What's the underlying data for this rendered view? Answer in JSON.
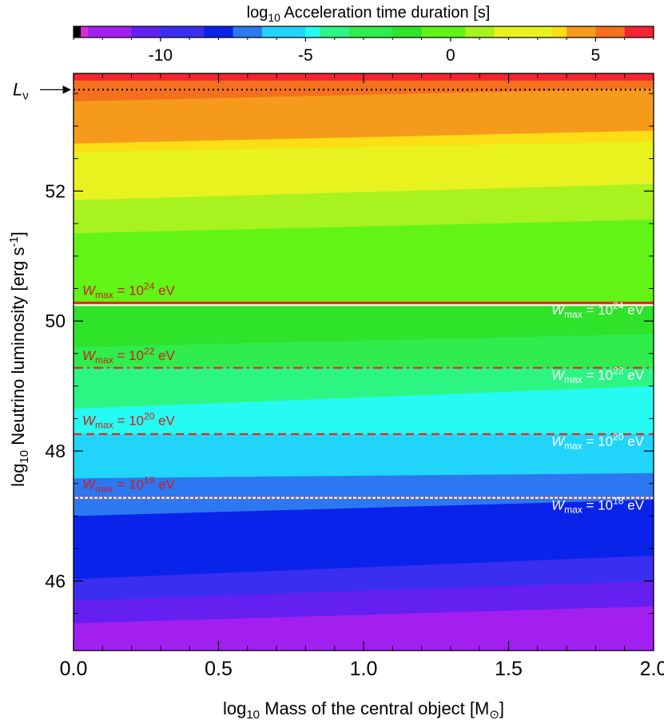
{
  "chart_data": {
    "type": "heatmap",
    "colorbar": {
      "title_prefix": "log",
      "title_sub": "10",
      "title_rest": " Acceleration time duration [s]",
      "range": [
        -13,
        7
      ],
      "ticks": [
        -10,
        -5,
        0,
        5
      ],
      "tick_labels": [
        "-10",
        "-5",
        "0",
        "5"
      ],
      "levels": [
        {
          "from": -13.0,
          "to": -12.75,
          "color": "#000000"
        },
        {
          "from": -12.75,
          "to": -12.5,
          "color": "#d82bd8"
        },
        {
          "from": -12.5,
          "to": -11.0,
          "color": "#a31ff0"
        },
        {
          "from": -11.0,
          "to": -10.0,
          "color": "#6320f0"
        },
        {
          "from": -10.0,
          "to": -8.5,
          "color": "#3a2ff0"
        },
        {
          "from": -8.5,
          "to": -7.5,
          "color": "#0a23ea"
        },
        {
          "from": -7.5,
          "to": -6.5,
          "color": "#2b78f0"
        },
        {
          "from": -6.5,
          "to": -5.0,
          "color": "#21d5fa"
        },
        {
          "from": -5.0,
          "to": -4.5,
          "color": "#25fbf2"
        },
        {
          "from": -4.5,
          "to": -3.5,
          "color": "#2cf584"
        },
        {
          "from": -3.5,
          "to": -2.0,
          "color": "#2fed4c"
        },
        {
          "from": -2.0,
          "to": -1.0,
          "color": "#2fe22a"
        },
        {
          "from": -1.0,
          "to": 0.5,
          "color": "#61f416"
        },
        {
          "from": 0.5,
          "to": 1.5,
          "color": "#a7f21f"
        },
        {
          "from": 1.5,
          "to": 3.5,
          "color": "#e8f21f"
        },
        {
          "from": 3.5,
          "to": 4.0,
          "color": "#fbde13"
        },
        {
          "from": 4.0,
          "to": 5.0,
          "color": "#f69a1c"
        },
        {
          "from": 5.0,
          "to": 6.0,
          "color": "#f5701c"
        },
        {
          "from": 6.0,
          "to": 7.0,
          "color": "#f52431"
        }
      ]
    },
    "x_axis": {
      "label_prefix": "log",
      "label_sub": "10",
      "label_rest": " Mass of the central object [M",
      "label_symbol": "⊙",
      "label_end": "]",
      "range": [
        0.0,
        2.0
      ],
      "ticks": [
        0.0,
        0.5,
        1.0,
        1.5,
        2.0
      ],
      "tick_labels": [
        "0.0",
        "0.5",
        "1.0",
        "1.5",
        "2.0"
      ]
    },
    "y_axis": {
      "label_prefix": "log",
      "label_sub": "10",
      "label_rest": " Neutrino luminosity [erg s",
      "label_sup": "-1",
      "label_end": "]",
      "range": [
        44.93,
        53.81
      ],
      "ticks": [
        46,
        48,
        50,
        52
      ],
      "tick_labels": [
        "46",
        "48",
        "50",
        "52"
      ]
    },
    "bands": [
      {
        "color": "#f52431",
        "y_left_top": 53.81,
        "y_right_top": 53.81
      },
      {
        "color": "#f5701c",
        "y_left_top": 53.7,
        "y_right_top": 53.7
      },
      {
        "color": "#f69a1c",
        "y_left_top": 53.38,
        "y_right_top": 53.58
      },
      {
        "color": "#fbde13",
        "y_left_top": 52.73,
        "y_right_top": 52.93
      },
      {
        "color": "#e8f21f",
        "y_left_top": 52.6,
        "y_right_top": 52.76
      },
      {
        "color": "#a7f21f",
        "y_left_top": 51.86,
        "y_right_top": 52.11
      },
      {
        "color": "#61f416",
        "y_left_top": 51.35,
        "y_right_top": 51.56
      },
      {
        "color": "#2fe22a",
        "y_left_top": 50.25,
        "y_right_top": 50.25
      },
      {
        "color": "#2fed4c",
        "y_left_top": 49.6,
        "y_right_top": 49.8
      },
      {
        "color": "#2cf584",
        "y_left_top": 49.28,
        "y_right_top": 49.28
      },
      {
        "color": "#25fbf2",
        "y_left_top": 48.65,
        "y_right_top": 49.0
      },
      {
        "color": "#21d5fa",
        "y_left_top": 48.26,
        "y_right_top": 48.26
      },
      {
        "color": "#2b78f0",
        "y_left_top": 47.58,
        "y_right_top": 47.66
      },
      {
        "color": "#0a23ea",
        "y_left_top": 47.0,
        "y_right_top": 47.25
      },
      {
        "color": "#3a2ff0",
        "y_left_top": 46.03,
        "y_right_top": 46.39
      },
      {
        "color": "#6320f0",
        "y_left_top": 45.7,
        "y_right_top": 46.0
      },
      {
        "color": "#a31ff0",
        "y_left_top": 45.35,
        "y_right_top": 45.61
      }
    ],
    "lines": [
      {
        "name": "L_nu",
        "y": 53.56,
        "style": "dotted",
        "color": "#000000"
      },
      {
        "name": "W1e24",
        "y": 50.28,
        "style": "solid",
        "color": "#e8261f"
      },
      {
        "name": "W1e22",
        "y": 49.28,
        "style": "dashdot",
        "color": "#e8261f"
      },
      {
        "name": "W1e20",
        "y": 48.26,
        "style": "dashed",
        "color": "#e8261f"
      },
      {
        "name": "W1e18",
        "y": 47.28,
        "style": "dotted",
        "color": "#e8261f"
      }
    ],
    "annotations": [
      {
        "pre": "W",
        "sub": "max",
        "mid": " = 10",
        "sup": "24",
        "post": " eV",
        "y": 50.4,
        "side": "left",
        "color": "#d11c1c"
      },
      {
        "pre": "W",
        "sub": "max",
        "mid": " = 10",
        "sup": "24",
        "post": " eV",
        "y": 50.1,
        "side": "right",
        "color": "#ffffff"
      },
      {
        "pre": "W",
        "sub": "max",
        "mid": " = 10",
        "sup": "22",
        "post": " eV",
        "y": 49.4,
        "side": "left",
        "color": "#d11c1c"
      },
      {
        "pre": "W",
        "sub": "max",
        "mid": " = 10",
        "sup": "22",
        "post": " eV",
        "y": 49.1,
        "side": "right",
        "color": "#ffffff"
      },
      {
        "pre": "W",
        "sub": "max",
        "mid": " = 10",
        "sup": "20",
        "post": " eV",
        "y": 48.4,
        "side": "left",
        "color": "#d11c1c"
      },
      {
        "pre": "W",
        "sub": "max",
        "mid": " = 10",
        "sup": "20",
        "post": " eV",
        "y": 48.08,
        "side": "right",
        "color": "#ffffff"
      },
      {
        "pre": "W",
        "sub": "max",
        "mid": " = 10",
        "sup": "18",
        "post": " eV",
        "y": 47.42,
        "side": "left",
        "color": "#d11c1c"
      },
      {
        "pre": "W",
        "sub": "max",
        "mid": " = 10",
        "sup": "18",
        "post": " eV",
        "y": 47.1,
        "side": "right",
        "color": "#ffffff"
      }
    ],
    "arrow_label": {
      "main": "L",
      "sub": "ν",
      "y": 53.56
    }
  }
}
